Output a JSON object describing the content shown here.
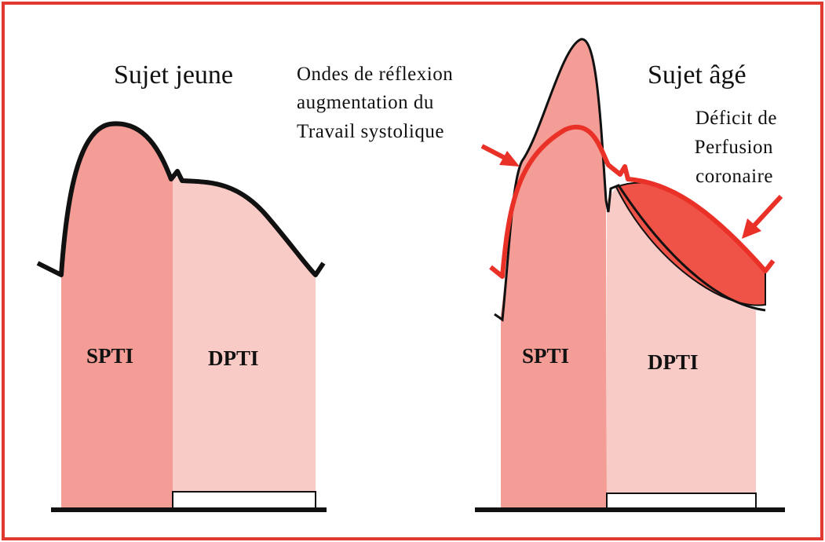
{
  "young": {
    "title": "Sujet jeune",
    "spti": "SPTI",
    "dpti": "DPTI"
  },
  "old": {
    "title": "Sujet âgé",
    "spti": "SPTI",
    "dpti": "DPTI",
    "reflection": [
      "Ondes de réflexion",
      "augmentation du",
      "Travail systolique"
    ],
    "deficit": [
      "Déficit de",
      "Perfusion",
      "coronaire"
    ]
  }
}
